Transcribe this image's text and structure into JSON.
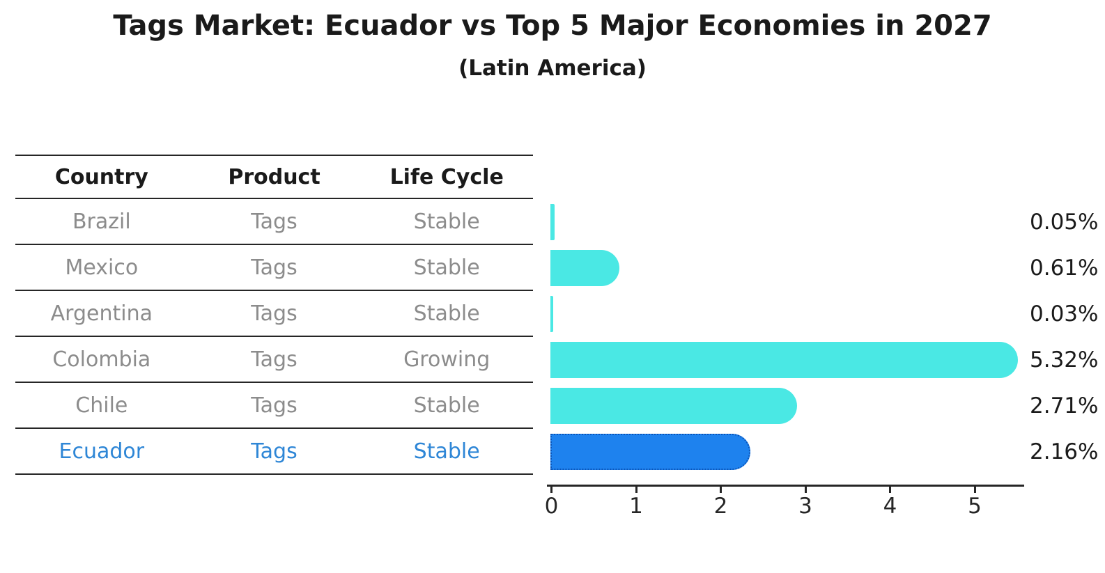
{
  "title": "Tags Market: Ecuador vs Top 5 Major Economies in 2027",
  "subtitle": "(Latin America)",
  "colors": {
    "bar": "#4AE8E4",
    "highlight_bar": "#1E82EE",
    "highlight_border": "#0A54B8",
    "highlight_text": "#2E86D6",
    "row_text": "#8C8C8C",
    "line": "#262626"
  },
  "table": {
    "headers": [
      "Country",
      "Product",
      "Life Cycle"
    ]
  },
  "chart_data": {
    "type": "bar",
    "orientation": "horizontal",
    "title": "Tags Market: Ecuador vs Top 5 Major Economies in 2027",
    "subtitle": "(Latin America)",
    "categories": [
      "Brazil",
      "Mexico",
      "Argentina",
      "Colombia",
      "Chile",
      "Ecuador"
    ],
    "values": [
      0.05,
      0.61,
      0.03,
      5.32,
      2.71,
      2.16
    ],
    "rows": [
      {
        "country": "Brazil",
        "product": "Tags",
        "life_cycle": "Stable",
        "value": 0.05,
        "label": "0.05%",
        "highlight": false
      },
      {
        "country": "Mexico",
        "product": "Tags",
        "life_cycle": "Stable",
        "value": 0.61,
        "label": "0.61%",
        "highlight": false
      },
      {
        "country": "Argentina",
        "product": "Tags",
        "life_cycle": "Stable",
        "value": 0.03,
        "label": "0.03%",
        "highlight": false
      },
      {
        "country": "Colombia",
        "product": "Tags",
        "life_cycle": "Growing",
        "value": 5.32,
        "label": "5.32%",
        "highlight": false
      },
      {
        "country": "Chile",
        "product": "Tags",
        "life_cycle": "Stable",
        "value": 2.71,
        "label": "2.71%",
        "highlight": false
      },
      {
        "country": "Ecuador",
        "product": "Tags",
        "life_cycle": "Stable",
        "value": 2.16,
        "label": "2.16%",
        "highlight": true
      }
    ],
    "x_ticks": [
      "0",
      "1",
      "2",
      "3",
      "4",
      "5"
    ],
    "xlim": [
      0,
      5.64
    ],
    "xlabel": "",
    "ylabel": "",
    "grid": false,
    "legend": false
  }
}
